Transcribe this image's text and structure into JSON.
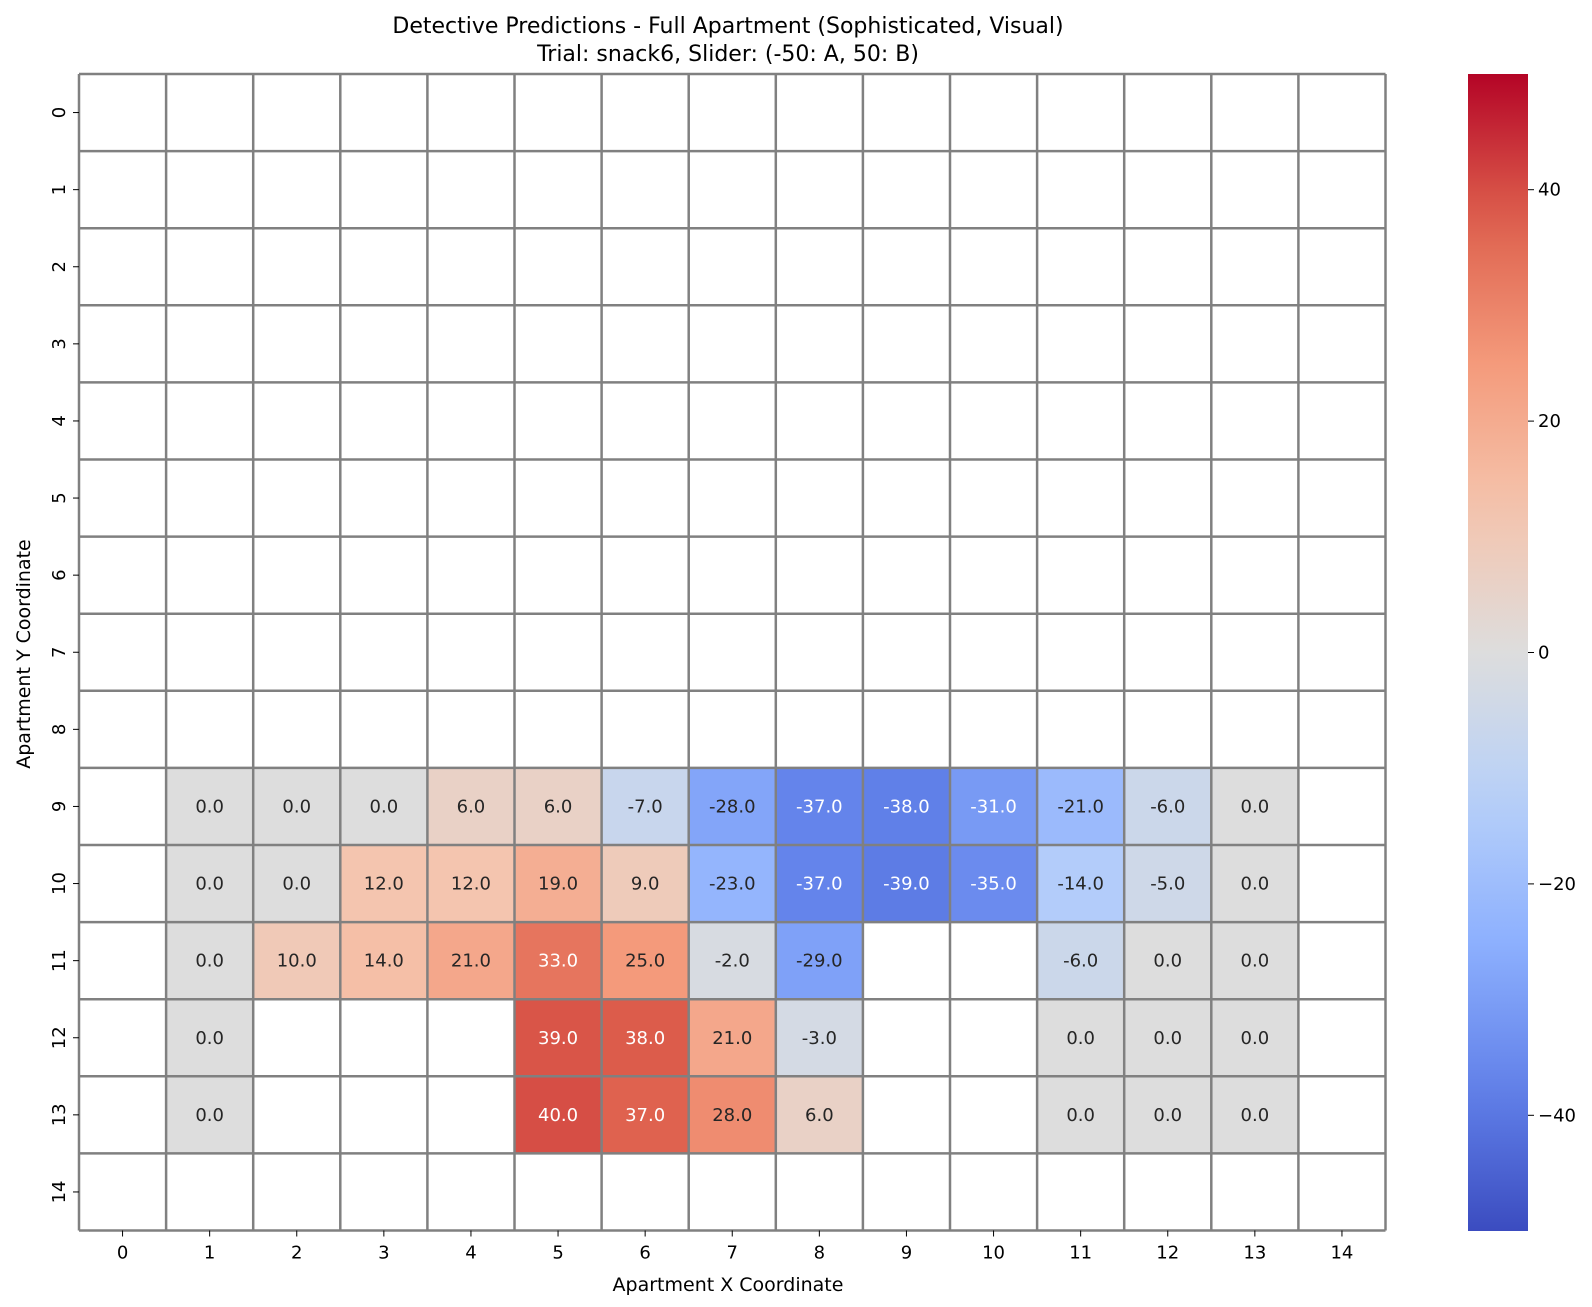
{
  "chart_data": {
    "type": "heatmap",
    "title": "Detective Predictions - Full Apartment (Sophisticated, Visual)",
    "subtitle": "Trial: snack6, Slider: (-50: A, 50: B)",
    "xlabel": "Apartment X Coordinate",
    "ylabel": "Apartment Y Coordinate",
    "x_ticks": [
      "0",
      "1",
      "2",
      "3",
      "4",
      "5",
      "6",
      "7",
      "8",
      "9",
      "10",
      "11",
      "12",
      "13",
      "14"
    ],
    "y_ticks": [
      "0",
      "1",
      "2",
      "3",
      "4",
      "5",
      "6",
      "7",
      "8",
      "9",
      "10",
      "11",
      "12",
      "13",
      "14"
    ],
    "colormap": "coolwarm",
    "vmin": -50,
    "vmax": 50,
    "colorbar_ticks": [
      "40",
      "20",
      "0",
      "−20",
      "−40"
    ],
    "colorbar_tick_values": [
      40,
      20,
      0,
      -20,
      -40
    ],
    "grid_line_color": "#808080",
    "cells": [
      {
        "x": 1,
        "y": 9,
        "v": 0.0,
        "label": "0.0"
      },
      {
        "x": 2,
        "y": 9,
        "v": 0.0,
        "label": "0.0"
      },
      {
        "x": 3,
        "y": 9,
        "v": 0.0,
        "label": "0.0"
      },
      {
        "x": 4,
        "y": 9,
        "v": 6.0,
        "label": "6.0"
      },
      {
        "x": 5,
        "y": 9,
        "v": 6.0,
        "label": "6.0"
      },
      {
        "x": 6,
        "y": 9,
        "v": -7.0,
        "label": "-7.0"
      },
      {
        "x": 7,
        "y": 9,
        "v": -28.0,
        "label": "-28.0"
      },
      {
        "x": 8,
        "y": 9,
        "v": -37.0,
        "label": "-37.0"
      },
      {
        "x": 9,
        "y": 9,
        "v": -38.0,
        "label": "-38.0"
      },
      {
        "x": 10,
        "y": 9,
        "v": -31.0,
        "label": "-31.0"
      },
      {
        "x": 11,
        "y": 9,
        "v": -21.0,
        "label": "-21.0"
      },
      {
        "x": 12,
        "y": 9,
        "v": -6.0,
        "label": "-6.0"
      },
      {
        "x": 13,
        "y": 9,
        "v": 0.0,
        "label": "0.0"
      },
      {
        "x": 1,
        "y": 10,
        "v": 0.0,
        "label": "0.0"
      },
      {
        "x": 2,
        "y": 10,
        "v": 0.0,
        "label": "0.0"
      },
      {
        "x": 3,
        "y": 10,
        "v": 12.0,
        "label": "12.0"
      },
      {
        "x": 4,
        "y": 10,
        "v": 12.0,
        "label": "12.0"
      },
      {
        "x": 5,
        "y": 10,
        "v": 19.0,
        "label": "19.0"
      },
      {
        "x": 6,
        "y": 10,
        "v": 9.0,
        "label": "9.0"
      },
      {
        "x": 7,
        "y": 10,
        "v": -23.0,
        "label": "-23.0"
      },
      {
        "x": 8,
        "y": 10,
        "v": -37.0,
        "label": "-37.0"
      },
      {
        "x": 9,
        "y": 10,
        "v": -39.0,
        "label": "-39.0"
      },
      {
        "x": 10,
        "y": 10,
        "v": -35.0,
        "label": "-35.0"
      },
      {
        "x": 11,
        "y": 10,
        "v": -14.0,
        "label": "-14.0"
      },
      {
        "x": 12,
        "y": 10,
        "v": -5.0,
        "label": "-5.0"
      },
      {
        "x": 13,
        "y": 10,
        "v": 0.0,
        "label": "0.0"
      },
      {
        "x": 1,
        "y": 11,
        "v": 0.0,
        "label": "0.0"
      },
      {
        "x": 2,
        "y": 11,
        "v": 10.0,
        "label": "10.0"
      },
      {
        "x": 3,
        "y": 11,
        "v": 14.0,
        "label": "14.0"
      },
      {
        "x": 4,
        "y": 11,
        "v": 21.0,
        "label": "21.0"
      },
      {
        "x": 5,
        "y": 11,
        "v": 33.0,
        "label": "33.0"
      },
      {
        "x": 6,
        "y": 11,
        "v": 25.0,
        "label": "25.0"
      },
      {
        "x": 7,
        "y": 11,
        "v": -2.0,
        "label": "-2.0"
      },
      {
        "x": 8,
        "y": 11,
        "v": -29.0,
        "label": "-29.0"
      },
      {
        "x": 11,
        "y": 11,
        "v": -6.0,
        "label": "-6.0"
      },
      {
        "x": 12,
        "y": 11,
        "v": 0.0,
        "label": "0.0"
      },
      {
        "x": 13,
        "y": 11,
        "v": 0.0,
        "label": "0.0"
      },
      {
        "x": 1,
        "y": 12,
        "v": 0.0,
        "label": "0.0"
      },
      {
        "x": 5,
        "y": 12,
        "v": 39.0,
        "label": "39.0"
      },
      {
        "x": 6,
        "y": 12,
        "v": 38.0,
        "label": "38.0"
      },
      {
        "x": 7,
        "y": 12,
        "v": 21.0,
        "label": "21.0"
      },
      {
        "x": 8,
        "y": 12,
        "v": -3.0,
        "label": "-3.0"
      },
      {
        "x": 11,
        "y": 12,
        "v": 0.0,
        "label": "0.0"
      },
      {
        "x": 12,
        "y": 12,
        "v": 0.0,
        "label": "0.0"
      },
      {
        "x": 13,
        "y": 12,
        "v": 0.0,
        "label": "0.0"
      },
      {
        "x": 1,
        "y": 13,
        "v": 0.0,
        "label": "0.0"
      },
      {
        "x": 5,
        "y": 13,
        "v": 40.0,
        "label": "40.0"
      },
      {
        "x": 6,
        "y": 13,
        "v": 37.0,
        "label": "37.0"
      },
      {
        "x": 7,
        "y": 13,
        "v": 28.0,
        "label": "28.0"
      },
      {
        "x": 8,
        "y": 13,
        "v": 6.0,
        "label": "6.0"
      },
      {
        "x": 11,
        "y": 13,
        "v": 0.0,
        "label": "0.0"
      },
      {
        "x": 12,
        "y": 13,
        "v": 0.0,
        "label": "0.0"
      },
      {
        "x": 13,
        "y": 13,
        "v": 0.0,
        "label": "0.0"
      }
    ]
  }
}
